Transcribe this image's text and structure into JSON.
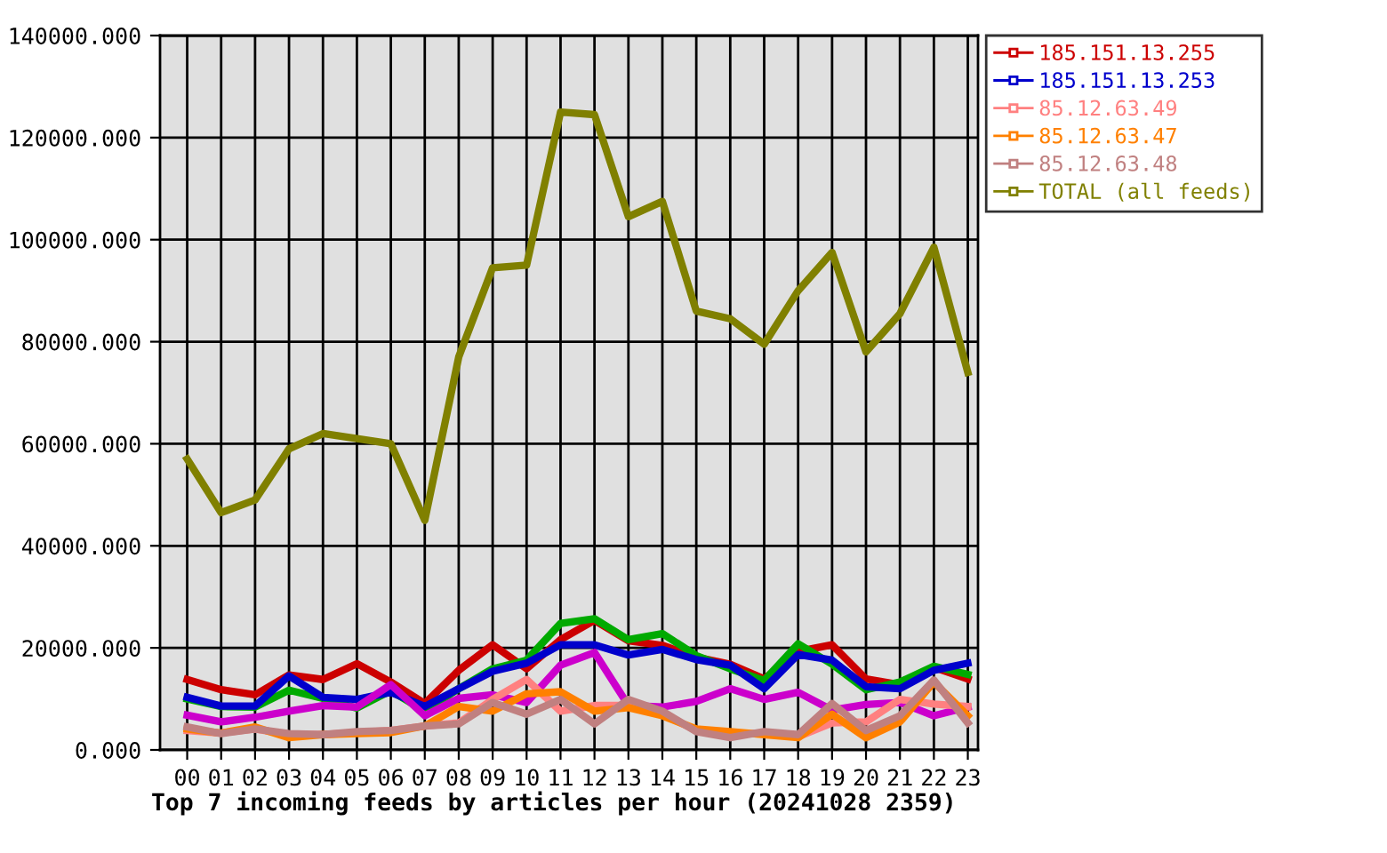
{
  "chart_data": {
    "type": "line",
    "title": "Top 7 incoming feeds by articles per hour (20241028 2359)",
    "categories": [
      "00",
      "01",
      "02",
      "03",
      "04",
      "05",
      "06",
      "07",
      "08",
      "09",
      "10",
      "11",
      "12",
      "13",
      "14",
      "15",
      "16",
      "17",
      "18",
      "19",
      "20",
      "21",
      "22",
      "23"
    ],
    "series": [
      {
        "name": "185.151.13.255",
        "color": "#cc0000",
        "values": [
          13800,
          11800,
          10800,
          14700,
          13800,
          16900,
          13300,
          9100,
          15600,
          20600,
          15900,
          21600,
          25400,
          21400,
          20500,
          18200,
          16800,
          13900,
          19300,
          20600,
          13900,
          12800,
          16200,
          13900
        ]
      },
      {
        "color": "#00aa00",
        "values": [
          10000,
          8500,
          8400,
          11700,
          10100,
          8200,
          11600,
          7600,
          12000,
          15900,
          17600,
          24800,
          25700,
          21600,
          22800,
          18500,
          15900,
          13600,
          20800,
          16800,
          11800,
          13300,
          16400,
          14800
        ]
      },
      {
        "name": "185.151.13.253",
        "color": "#0000cc",
        "values": [
          10300,
          8600,
          8600,
          14500,
          10300,
          9900,
          11300,
          8500,
          12000,
          15400,
          17000,
          20600,
          20600,
          18600,
          19700,
          17700,
          16600,
          12000,
          18700,
          17600,
          12400,
          12000,
          15600,
          17000
        ]
      },
      {
        "color": "#cc00cc",
        "values": [
          6800,
          5500,
          6400,
          7600,
          8700,
          8400,
          12800,
          6700,
          10100,
          10800,
          9300,
          16600,
          19100,
          8700,
          8400,
          9500,
          12000,
          9900,
          11300,
          7800,
          8900,
          9300,
          6700,
          8400
        ]
      },
      {
        "name": "85.12.63.49",
        "color": "#ff8080",
        "values": [
          3800,
          3300,
          4100,
          3000,
          3000,
          3400,
          3800,
          4700,
          5300,
          9900,
          13800,
          7600,
          8700,
          8700,
          7000,
          3800,
          3000,
          3300,
          2600,
          5300,
          5500,
          9900,
          9000,
          8500
        ]
      },
      {
        "name": "85.12.63.47",
        "color": "#ff8000",
        "values": [
          4100,
          3300,
          4500,
          2400,
          3000,
          3200,
          3400,
          4700,
          8500,
          7600,
          11000,
          11400,
          7600,
          8300,
          6700,
          4100,
          3600,
          3000,
          2400,
          7000,
          2400,
          5500,
          13300,
          6700
        ]
      },
      {
        "name": "85.12.63.48",
        "color": "#c08080",
        "values": [
          4500,
          3200,
          4100,
          3200,
          3000,
          3600,
          3800,
          4700,
          5100,
          9300,
          7000,
          9900,
          5100,
          9900,
          7600,
          3600,
          2400,
          3600,
          3000,
          9100,
          3800,
          6700,
          13700,
          5300
        ]
      },
      {
        "name": "TOTAL (all feeds)",
        "color": "#808000",
        "values": [
          57000,
          46500,
          49000,
          59000,
          62000,
          61000,
          60000,
          45000,
          77000,
          94500,
          95000,
          125000,
          124500,
          104500,
          107500,
          86000,
          84500,
          79500,
          90000,
          97500,
          78000,
          85500,
          98500,
          74000
        ]
      }
    ],
    "ylim": [
      0,
      140000
    ],
    "yticks": [
      {
        "value": 0,
        "label": "0.000"
      },
      {
        "value": 20000,
        "label": "20000.000"
      },
      {
        "value": 40000,
        "label": "40000.000"
      },
      {
        "value": 60000,
        "label": "60000.000"
      },
      {
        "value": 80000,
        "label": "80000.000"
      },
      {
        "value": 100000,
        "label": "100000.000"
      },
      {
        "value": 120000,
        "label": "120000.000"
      },
      {
        "value": 140000,
        "label": "140000.000"
      }
    ],
    "grid": true,
    "legend": "top right",
    "marker": "none",
    "line_style": "solid"
  }
}
